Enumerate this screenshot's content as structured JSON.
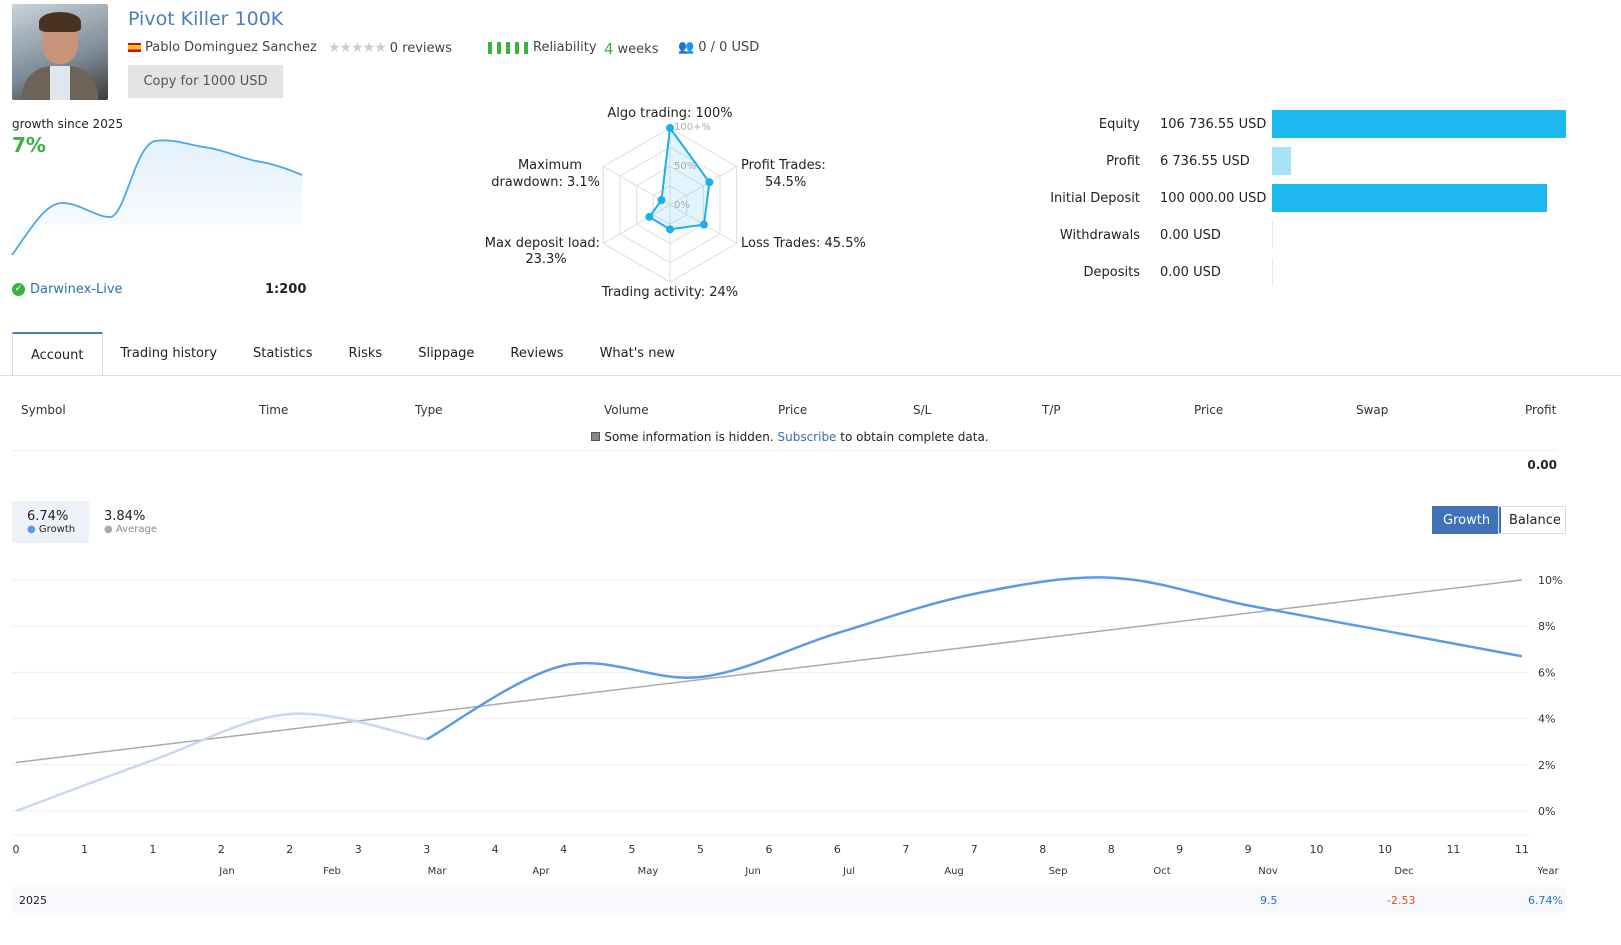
{
  "header": {
    "title": "Pivot Killer 100K",
    "author": "Pablo Dominguez Sanchez",
    "reviews": "0 reviews",
    "reliability": "Reliability",
    "weeks_num": "4",
    "weeks_label": "weeks",
    "subscribers": "0 / 0 USD",
    "copy_button": "Copy for 1000 USD",
    "rating_stars": 0
  },
  "growth_card": {
    "label": "growth since 2025",
    "value": "7%",
    "broker": "Darwinex-Live",
    "leverage": "1:200",
    "line_color": "#4aa8e8"
  },
  "radar": {
    "labels": {
      "algo": "Algo trading: 100%",
      "profit": "Profit Trades:",
      "profit_v": "54.5%",
      "loss": "Loss Trades: 45.5%",
      "activity": "Trading activity: 24%",
      "load": "Max deposit load:",
      "load_v": "23.3%",
      "dd": "Maximum",
      "dd_v": "drawdown: 3.1%"
    },
    "scale": [
      "100+%",
      "50%",
      "0%"
    ],
    "values": [
      100,
      54.5,
      45.5,
      24,
      23.3,
      3.1
    ],
    "color": "#1cb0ea"
  },
  "balance": {
    "rows": [
      {
        "label": "Equity",
        "value": "106 736.55 USD",
        "fill": 1.0,
        "color": "#1cb8ef"
      },
      {
        "label": "Profit",
        "value": "6 736.55 USD",
        "fill": 0.063,
        "color": "#a8e2f8"
      },
      {
        "label": "Initial Deposit",
        "value": "100 000.00 USD",
        "fill": 0.937,
        "color": "#1cb8ef"
      },
      {
        "label": "Withdrawals",
        "value": "0.00 USD",
        "fill": 0,
        "color": "#1cb8ef"
      },
      {
        "label": "Deposits",
        "value": "0.00 USD",
        "fill": 0,
        "color": "#1cb8ef"
      }
    ]
  },
  "tabs": [
    "Account",
    "Trading history",
    "Statistics",
    "Risks",
    "Slippage",
    "Reviews",
    "What's new"
  ],
  "table": {
    "columns": [
      "Symbol",
      "Time",
      "Type",
      "Volume",
      "Price",
      "S/L",
      "T/P",
      "Price",
      "Swap",
      "Profit"
    ],
    "notice_pre": "Some information is hidden.",
    "notice_link": "Subscribe",
    "notice_post": "to obtain complete data.",
    "total": "0.00"
  },
  "legend": {
    "growth_value": "6.74%",
    "growth_label": "Growth",
    "average_value": "3.84%",
    "average_label": "Average"
  },
  "toggle": {
    "growth": "Growth",
    "balance": "Balance"
  },
  "chart_data": {
    "type": "line",
    "ylim": [
      0,
      10
    ],
    "y_ticks": [
      "10%",
      "8%",
      "6%",
      "4%",
      "2%",
      "0%"
    ],
    "x_ticks": [
      "0",
      "1",
      "1",
      "2",
      "2",
      "3",
      "3",
      "4",
      "4",
      "5",
      "5",
      "6",
      "6",
      "7",
      "7",
      "8",
      "8",
      "9",
      "9",
      "10",
      "10",
      "11",
      "11"
    ],
    "series": [
      {
        "name": "Growth",
        "color": "#5a9be6",
        "x": [
          0,
          2,
          4,
          6,
          8,
          10,
          12,
          14,
          16,
          18,
          20,
          22
        ],
        "y": [
          0,
          2.2,
          4.2,
          3.1,
          6.3,
          5.8,
          7.7,
          9.4,
          10.1,
          8.9,
          7.8,
          6.7
        ]
      },
      {
        "name": "Average",
        "color": "#aaaaaa",
        "x": [
          0,
          22
        ],
        "y": [
          2.1,
          10
        ]
      }
    ]
  },
  "months": [
    "Jan",
    "Feb",
    "Mar",
    "Apr",
    "May",
    "Jun",
    "Jul",
    "Aug",
    "Sep",
    "Oct",
    "Nov",
    "Dec",
    "Year"
  ],
  "year_row": {
    "year": "2025",
    "nov": "9.5",
    "dec": "-2.53",
    "total": "6.74%"
  }
}
